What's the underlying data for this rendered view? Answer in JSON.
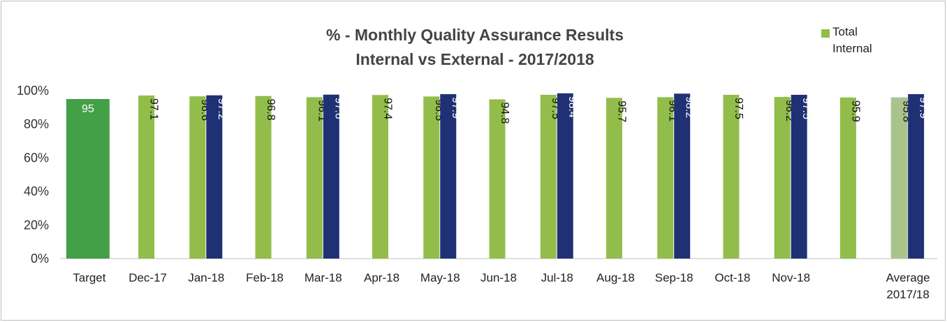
{
  "chart_data": {
    "type": "bar",
    "title": "% - Monthly Quality Assurance Results",
    "subtitle": "Internal vs External  - 2017/2018",
    "categories": [
      "Target",
      "Dec-17",
      "Jan-18",
      "Feb-18",
      "Mar-18",
      "Apr-18",
      "May-18",
      "Jun-18",
      "Jul-18",
      "Aug-18",
      "Sep-18",
      "Oct-18",
      "Nov-18",
      null,
      "Average 2017/18"
    ],
    "series": [
      {
        "name": "Total Internal",
        "color": "#92bd4b",
        "point_colors": [
          "#43a047",
          null,
          null,
          null,
          null,
          null,
          null,
          null,
          null,
          null,
          null,
          null,
          null,
          null,
          "#a9c48a"
        ],
        "values": [
          95,
          97.1,
          96.6,
          96.8,
          96.1,
          97.4,
          96.5,
          94.8,
          97.5,
          95.7,
          96.1,
          97.5,
          96.2,
          95.9,
          95.8
        ]
      },
      {
        "color": "#1f3174",
        "values": [
          null,
          null,
          97.2,
          null,
          97.6,
          null,
          97.9,
          null,
          98.4,
          null,
          98.2,
          null,
          97.5,
          null,
          97.9
        ]
      }
    ],
    "ylim": [
      0,
      100
    ],
    "yticks": [
      {
        "value": 0,
        "label": "0%"
      },
      {
        "value": 20,
        "label": "20%"
      },
      {
        "value": 40,
        "label": "40%"
      },
      {
        "value": 60,
        "label": "60%"
      },
      {
        "value": 80,
        "label": "80%"
      },
      {
        "value": 100,
        "label": "100%"
      }
    ],
    "grid": false,
    "legend": "top-right"
  }
}
